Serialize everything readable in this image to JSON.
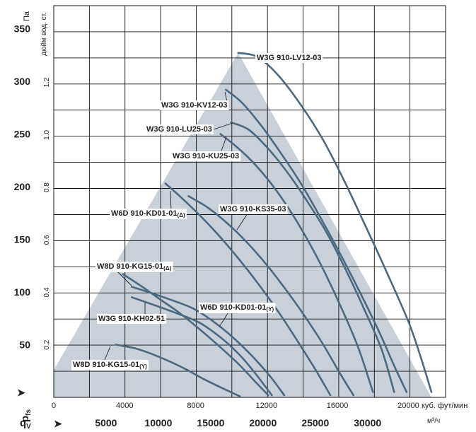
{
  "chart_data": {
    "type": "line",
    "title": "",
    "xlabel_cfm_unit": "куб. фут/мин",
    "xlabel_m3h_unit": "м³/ч",
    "xlabel_symbol": "q",
    "xlabel_sub": "V",
    "ylabel_pa_unit": "Па",
    "ylabel_inwg_unit": "дюйм вод. ст.",
    "ylabel_symbol": "p",
    "ylabel_sub": "fs",
    "x_cfm_ticks": [
      "0",
      "4000",
      "8000",
      "12000",
      "16000",
      "20000"
    ],
    "x_m3h_ticks": [
      "5000",
      "10000",
      "15000",
      "20000",
      "25000",
      "30000"
    ],
    "y_pa_ticks": [
      "50",
      "100",
      "150",
      "200",
      "250",
      "300",
      "350"
    ],
    "y_inwg_ticks": [
      "0.2",
      "0.4",
      "0.6",
      "0.8",
      "1.0",
      "1.2"
    ],
    "xlim_cfm": [
      0,
      22000
    ],
    "ylim_pa": [
      0,
      370
    ],
    "grid": true,
    "operating_envelope_pa": {
      "x_cfm": [
        0,
        0,
        10400,
        21300,
        21300
      ],
      "y_pa": [
        0,
        26,
        327,
        0,
        0
      ]
    },
    "series": [
      {
        "name": "W3G 910-LV12-03",
        "x_cfm": [
          10400,
          11500,
          12700,
          14000,
          15200,
          16400,
          17600,
          18800,
          20000,
          20700,
          21300
        ],
        "y_pa": [
          327,
          323,
          305,
          276,
          244,
          205,
          162,
          118,
          72,
          38,
          5
        ]
      },
      {
        "name": "W3G 910-KV12-03",
        "x_cfm": [
          9700,
          10600,
          11700,
          12800,
          13900,
          15000,
          16100,
          17200,
          18300,
          19200,
          19900
        ],
        "y_pa": [
          292,
          280,
          258,
          232,
          204,
          172,
          138,
          102,
          64,
          30,
          5
        ]
      },
      {
        "name": "W3G 910-LU25-03",
        "x_cfm": [
          10000,
          11000,
          12100,
          13200,
          14300,
          15400,
          16500,
          17500,
          18500,
          19200
        ],
        "y_pa": [
          261,
          254,
          236,
          213,
          186,
          156,
          120,
          84,
          45,
          5
        ]
      },
      {
        "name": "W3G 910-KU25-03",
        "x_cfm": [
          9400,
          10300,
          11300,
          12300,
          13300,
          14300,
          15300,
          16300,
          17200,
          18000
        ],
        "y_pa": [
          250,
          238,
          222,
          202,
          178,
          150,
          118,
          82,
          46,
          5
        ]
      },
      {
        "name": "W3G 910-KS35-03",
        "x_cfm": [
          7600,
          8700,
          9800,
          10900,
          12000,
          13100,
          14200,
          15200,
          16100,
          16900
        ],
        "y_pa": [
          191,
          180,
          165,
          147,
          126,
          102,
          76,
          50,
          24,
          2
        ]
      },
      {
        "name": "W6D 910-KD01-01",
        "x_cfm": [
          6300,
          7300,
          8400,
          9500,
          10600,
          11700,
          12800,
          13800,
          14700,
          15600
        ],
        "y_pa": [
          203,
          188,
          170,
          150,
          128,
          104,
          78,
          52,
          28,
          2
        ]
      },
      {
        "name": "W8D 910-KG15-01",
        "x_cfm": [
          3900,
          4900,
          6000,
          7100,
          8200,
          9300,
          10400,
          11300,
          12100
        ],
        "y_pa": [
          117,
          106,
          93,
          80,
          65,
          49,
          32,
          16,
          2
        ]
      },
      {
        "name": "W6D 910-KD01-01",
        "x_cfm": [
          4400,
          5500,
          6700,
          7900,
          9000,
          10100,
          11200,
          12200,
          13000
        ],
        "y_pa": [
          105,
          99,
          92,
          84,
          72,
          57,
          39,
          20,
          2
        ]
      },
      {
        "name": "W3G 910-KH02-51",
        "x_cfm": [
          4400,
          5600,
          6900,
          8200,
          9400,
          10500,
          11400,
          12300
        ],
        "y_pa": [
          95,
          88,
          80,
          71,
          57,
          40,
          22,
          2
        ]
      },
      {
        "name": "W8D 910-KG15-01",
        "x_cfm": [
          3500,
          4700,
          6000,
          7300,
          8500,
          9600,
          10500
        ],
        "y_pa": [
          50,
          46,
          38,
          28,
          17,
          8,
          1
        ]
      }
    ],
    "labels": [
      {
        "text": "W3G 910-LV12-03",
        "sub": ""
      },
      {
        "text": "W3G 910-KV12-03",
        "sub": ""
      },
      {
        "text": "W3G 910-LU25-03",
        "sub": ""
      },
      {
        "text": "W3G 910-KU25-03",
        "sub": ""
      },
      {
        "text": "W3G 910-KS35-03",
        "sub": ""
      },
      {
        "text": "W6D 910-KD01-01",
        "sub": "(Δ)"
      },
      {
        "text": "W8D 910-KG15-01",
        "sub": "(Δ)"
      },
      {
        "text": "W6D 910-KD01-01",
        "sub": "(Y)"
      },
      {
        "text": "W3G 910-KH02-51",
        "sub": ""
      },
      {
        "text": "W8D 910-KG15-01",
        "sub": "(Y)"
      }
    ],
    "colors": {
      "envelope": "#c8d0d9",
      "curve": "#4b6a82",
      "grid": "#111111"
    }
  }
}
